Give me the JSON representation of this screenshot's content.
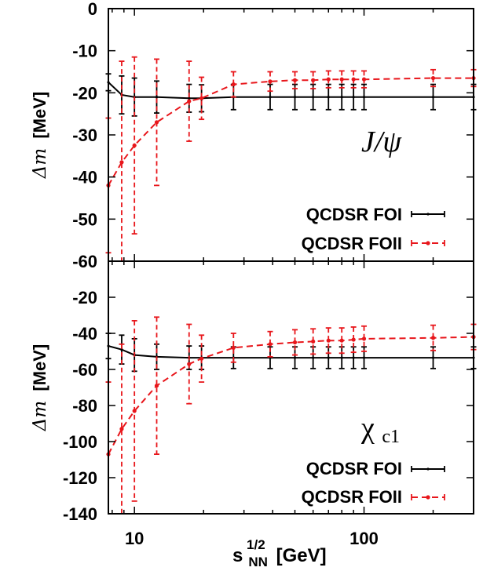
{
  "chart_data": [
    {
      "type": "line",
      "panel": "top",
      "annotation": {
        "main": "J/ψ"
      },
      "ylabel": {
        "symbol": "Δm",
        "unit": "[MeV]"
      },
      "ylim": [
        -60,
        0
      ],
      "yticks": [
        0,
        -10,
        -20,
        -30,
        -40,
        -50,
        -60
      ],
      "xlabel": {
        "base": "s",
        "sub": "NN",
        "sup": "1/2",
        "unit": "[GeV]"
      },
      "xscale": "log",
      "xlim": [
        7.7,
        300
      ],
      "xticks": [
        {
          "value": 10,
          "label": "10"
        },
        {
          "value": 100,
          "label": "100"
        }
      ],
      "legend_position": "bottom-right",
      "series": [
        {
          "name": "QCDSR FOI",
          "color": "#000000",
          "style": "solid",
          "points": [
            {
              "x": 7.7,
              "y": -17.5,
              "err": 2
            },
            {
              "x": 8.8,
              "y": -20.5,
              "err": 4.5
            },
            {
              "x": 10,
              "y": -21,
              "err": 4.5
            },
            {
              "x": 12.5,
              "y": -21,
              "err": 3.8
            },
            {
              "x": 17.3,
              "y": -21.3,
              "err": 3.3
            },
            {
              "x": 19.6,
              "y": -21.3,
              "err": 3.2
            },
            {
              "x": 27,
              "y": -21,
              "err": 3
            },
            {
              "x": 39,
              "y": -21,
              "err": 3
            },
            {
              "x": 50,
              "y": -21,
              "err": 3
            },
            {
              "x": 60,
              "y": -21,
              "err": 3
            },
            {
              "x": 70,
              "y": -21,
              "err": 3
            },
            {
              "x": 80,
              "y": -21,
              "err": 3
            },
            {
              "x": 90,
              "y": -21,
              "err": 3
            },
            {
              "x": 100,
              "y": -21,
              "err": 3
            },
            {
              "x": 200,
              "y": -21,
              "err": 3
            },
            {
              "x": 300,
              "y": -21,
              "err": 3
            }
          ]
        },
        {
          "name": "QCDSR FOII",
          "color": "#e8161b",
          "style": "dashed",
          "points": [
            {
              "x": 7.7,
              "y": -42,
              "err": 16
            },
            {
              "x": 8.8,
              "y": -36.5,
              "err": 24
            },
            {
              "x": 10,
              "y": -32.5,
              "err": 21
            },
            {
              "x": 12.5,
              "y": -27,
              "err": 15
            },
            {
              "x": 17.3,
              "y": -22,
              "err": 9.5
            },
            {
              "x": 19.6,
              "y": -21.3,
              "err": 5
            },
            {
              "x": 27,
              "y": -18,
              "err": 3
            },
            {
              "x": 39,
              "y": -17.3,
              "err": 2.3
            },
            {
              "x": 50,
              "y": -17,
              "err": 2
            },
            {
              "x": 60,
              "y": -17,
              "err": 2
            },
            {
              "x": 70,
              "y": -16.8,
              "err": 2
            },
            {
              "x": 80,
              "y": -16.8,
              "err": 2
            },
            {
              "x": 90,
              "y": -16.8,
              "err": 2
            },
            {
              "x": 100,
              "y": -16.8,
              "err": 2
            },
            {
              "x": 200,
              "y": -16.5,
              "err": 2
            },
            {
              "x": 300,
              "y": -16.5,
              "err": 2
            }
          ]
        }
      ]
    },
    {
      "type": "line",
      "panel": "bottom",
      "annotation": {
        "main": "χ",
        "sub": "c1"
      },
      "ylabel": {
        "symbol": "Δm",
        "unit": "[MeV]"
      },
      "ylim": [
        -140,
        0
      ],
      "yticks": [
        -20,
        -40,
        -60,
        -80,
        -100,
        -120,
        -140
      ],
      "xlabel": {
        "base": "s",
        "sub": "NN",
        "sup": "1/2",
        "unit": "[GeV]"
      },
      "xscale": "log",
      "xlim": [
        7.7,
        300
      ],
      "xticks": [
        {
          "value": 10,
          "label": "10"
        },
        {
          "value": 100,
          "label": "100"
        }
      ],
      "legend_position": "bottom-right",
      "series": [
        {
          "name": "QCDSR FOI",
          "color": "#000000",
          "style": "solid",
          "points": [
            {
              "x": 7.7,
              "y": -47,
              "err": 7
            },
            {
              "x": 8.8,
              "y": -49,
              "err": 8
            },
            {
              "x": 10,
              "y": -52,
              "err": 9
            },
            {
              "x": 12.5,
              "y": -53,
              "err": 7
            },
            {
              "x": 17.3,
              "y": -53.5,
              "err": 6.5
            },
            {
              "x": 19.6,
              "y": -53.5,
              "err": 6.5
            },
            {
              "x": 27,
              "y": -53.5,
              "err": 6
            },
            {
              "x": 39,
              "y": -53.5,
              "err": 6
            },
            {
              "x": 50,
              "y": -53.5,
              "err": 6
            },
            {
              "x": 60,
              "y": -53.5,
              "err": 6
            },
            {
              "x": 70,
              "y": -53.5,
              "err": 6
            },
            {
              "x": 80,
              "y": -53.5,
              "err": 6
            },
            {
              "x": 90,
              "y": -53.5,
              "err": 6
            },
            {
              "x": 100,
              "y": -53.5,
              "err": 6
            },
            {
              "x": 200,
              "y": -53.5,
              "err": 6
            },
            {
              "x": 300,
              "y": -53.5,
              "err": 6
            }
          ]
        },
        {
          "name": "QCDSR FOII",
          "color": "#e8161b",
          "style": "dashed",
          "points": [
            {
              "x": 7.7,
              "y": -107,
              "err": 40
            },
            {
              "x": 8.8,
              "y": -93,
              "err": 47
            },
            {
              "x": 10,
              "y": -83,
              "err": 50
            },
            {
              "x": 12.5,
              "y": -69,
              "err": 38
            },
            {
              "x": 17.3,
              "y": -57,
              "err": 22
            },
            {
              "x": 19.6,
              "y": -54,
              "err": 13
            },
            {
              "x": 27,
              "y": -48,
              "err": 8
            },
            {
              "x": 39,
              "y": -46,
              "err": 7
            },
            {
              "x": 50,
              "y": -45,
              "err": 7
            },
            {
              "x": 60,
              "y": -44.5,
              "err": 7
            },
            {
              "x": 70,
              "y": -44,
              "err": 7
            },
            {
              "x": 80,
              "y": -44,
              "err": 7
            },
            {
              "x": 90,
              "y": -43.5,
              "err": 7
            },
            {
              "x": 100,
              "y": -43,
              "err": 7
            },
            {
              "x": 200,
              "y": -42.5,
              "err": 7
            },
            {
              "x": 300,
              "y": -42,
              "err": 7
            }
          ]
        }
      ]
    }
  ]
}
